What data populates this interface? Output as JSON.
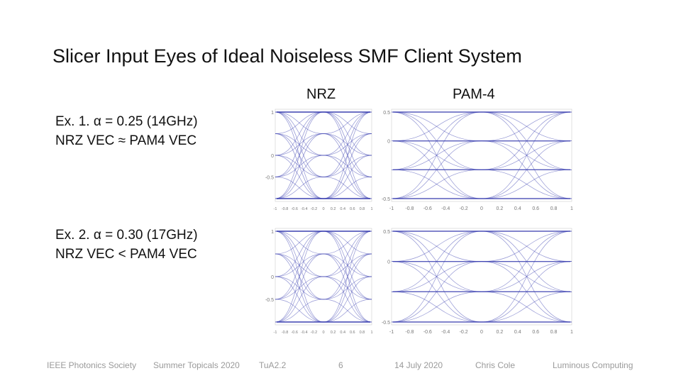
{
  "slide": {
    "title": "Slicer Input Eyes of Ideal Noiseless SMF Client System",
    "columns": {
      "nrz": "NRZ",
      "pam4": "PAM-4"
    },
    "examples": [
      {
        "line1": "Ex. 1. α = 0.25 (14GHz)",
        "line2": "NRZ VEC ≈ PAM4 VEC"
      },
      {
        "line1": "Ex. 2. α = 0.30 (17GHz)",
        "line2": "NRZ VEC < PAM4 VEC"
      }
    ],
    "footer": {
      "society": "IEEE Photonics Society",
      "event": "Summer Topicals 2020",
      "session": "TuA2.2",
      "page": "6",
      "date": "14 July 2020",
      "author": "Chris Cole",
      "company": "Luminous Computing"
    }
  },
  "colors": {
    "trace": "#3a3fb0",
    "axis": "#777777",
    "text": "#111111",
    "footer": "#9a9a9a"
  },
  "plots": {
    "nrz_1": {
      "y_ticks": [
        "1",
        "0",
        "-0.5"
      ],
      "x_ticks": [
        "-1",
        "-0.8",
        "-0.6",
        "-0.4",
        "-0.2",
        "0",
        "0.2",
        "0.4",
        "0.6",
        "0.8",
        "1"
      ],
      "levels": [
        1,
        0.5,
        0,
        -0.5,
        -1
      ]
    },
    "pam4_1": {
      "y_ticks": [
        "0.5",
        "0",
        "-0.5"
      ],
      "x_ticks": [
        "-1",
        "-0.8",
        "-0.6",
        "-0.4",
        "-0.2",
        "0",
        "0.2",
        "0.4",
        "0.6",
        "0.8",
        "1"
      ],
      "levels": [
        0.5,
        0.1667,
        -0.1667,
        -0.5
      ]
    },
    "nrz_2": {
      "y_ticks": [
        "1",
        "0",
        "-0.5"
      ],
      "x_ticks": [
        "-1",
        "-0.8",
        "-0.6",
        "-0.4",
        "-0.2",
        "0",
        "0.2",
        "0.4",
        "0.6",
        "0.8",
        "1"
      ],
      "levels": [
        1,
        0.5,
        0,
        -0.5,
        -1
      ]
    },
    "pam4_2": {
      "y_ticks": [
        "0.5",
        "0",
        "-0.5"
      ],
      "x_ticks": [
        "-1",
        "-0.8",
        "-0.6",
        "-0.4",
        "-0.2",
        "0",
        "0.2",
        "0.4",
        "0.6",
        "0.8",
        "1"
      ],
      "levels": [
        0.5,
        0.1667,
        -0.1667,
        -0.5
      ]
    }
  }
}
